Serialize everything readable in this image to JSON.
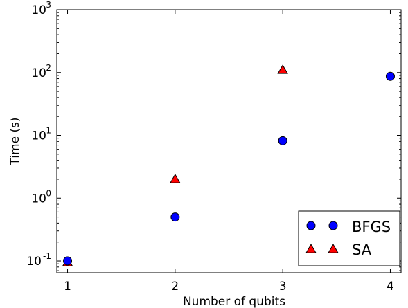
{
  "chart_data": {
    "type": "scatter",
    "xlabel": "Number of qubits",
    "ylabel": "Time (s)",
    "xlim": [
      0.9,
      4.1
    ],
    "ylim": [
      0.065,
      1000
    ],
    "yscale": "log",
    "xticks": [
      1,
      2,
      3,
      4
    ],
    "yticks": [
      0.1,
      1,
      10,
      100,
      1000
    ],
    "ytick_base": "10",
    "ytick_exponents": [
      "-1",
      "0",
      "1",
      "2",
      "3"
    ],
    "grid": false,
    "legend_position": "lower-right",
    "series": [
      {
        "name": "BFGS",
        "marker": "circle",
        "color": "#0000ff",
        "x": [
          1,
          2,
          3,
          4
        ],
        "y": [
          0.1,
          0.5,
          8.2,
          87
        ]
      },
      {
        "name": "SA",
        "marker": "triangle",
        "color": "#ff0000",
        "x": [
          1,
          2,
          3
        ],
        "y": [
          0.095,
          2.0,
          110
        ]
      }
    ]
  }
}
